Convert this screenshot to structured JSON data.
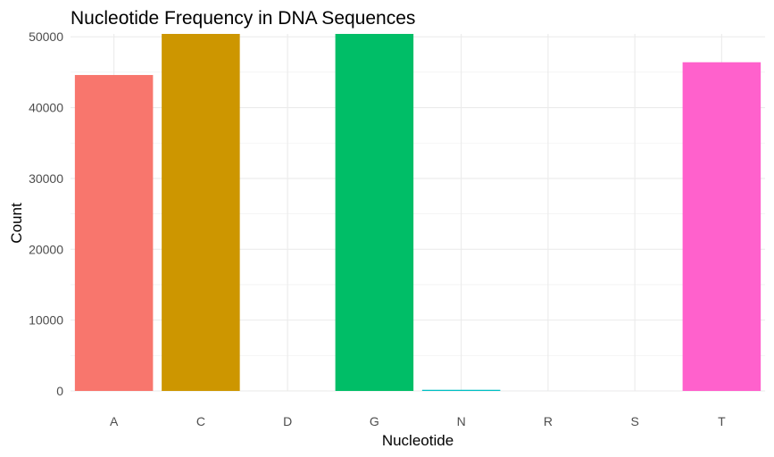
{
  "chart_data": {
    "type": "bar",
    "title": "Nucleotide Frequency in DNA Sequences",
    "xlabel": "Nucleotide",
    "ylabel": "Count",
    "categories": [
      "A",
      "C",
      "D",
      "G",
      "N",
      "R",
      "S",
      "T"
    ],
    "values": [
      44600,
      50400,
      2,
      50400,
      160,
      1,
      1,
      46400
    ],
    "colors": [
      "#F8766D",
      "#CD9600",
      "#7CAE00",
      "#00BE67",
      "#00BFC4",
      "#00A9FF",
      "#C77CFF",
      "#FF61CC"
    ],
    "ylim": [
      0,
      50400
    ],
    "yticks": [
      0,
      10000,
      20000,
      30000,
      40000,
      50000
    ],
    "grid": true,
    "legend": "none"
  }
}
